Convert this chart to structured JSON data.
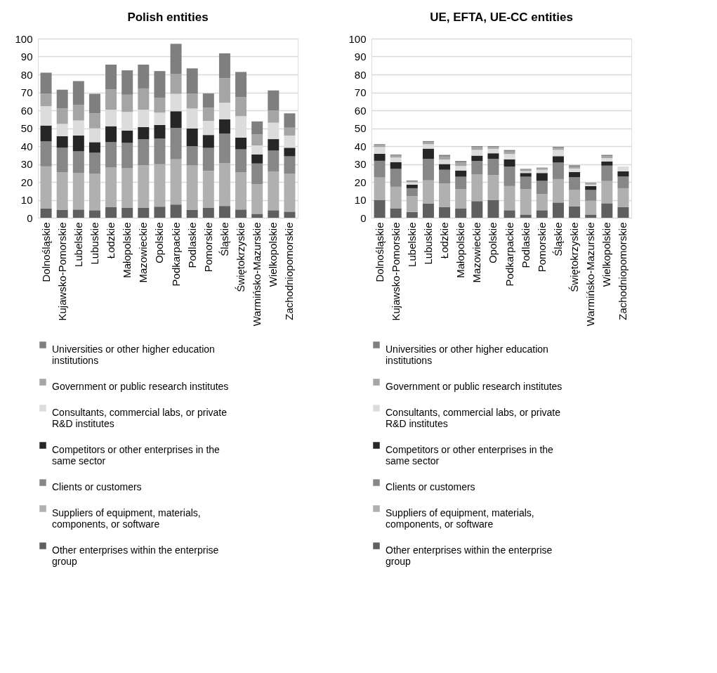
{
  "chart_data": [
    {
      "type": "bar",
      "title": "Polish entities",
      "stacked": true,
      "grid": "y",
      "legend": "bottom",
      "categories": [
        "Dolnośląskie",
        "Kujawsko-Pomorskie",
        "Lubelskie",
        "Lubuskie",
        "Łodzkie",
        "Małopolskie",
        "Mazowieckie",
        "Opolskie",
        "Podkarpackie",
        "Podlaskie",
        "Pomorskie",
        "Śląskie",
        "Świętokrzyskie",
        "Warmińsko-Mazurskie",
        "Wielkopolskie",
        "Zachodniopomorskie"
      ],
      "ylim": [
        0,
        100
      ],
      "yticks": [
        0,
        10,
        20,
        30,
        40,
        50,
        60,
        70,
        80,
        90,
        100
      ],
      "series": [
        {
          "name": "Other enterprises within the enterprise group",
          "color": "#5f5f5f",
          "values": [
            5.1,
            4.5,
            4.6,
            4.2,
            5.9,
            5.5,
            5.5,
            6.2,
            7.4,
            4.5,
            5.5,
            6.6,
            4.6,
            2.2,
            4.2,
            3.4
          ]
        },
        {
          "name": "Suppliers of equipment, materials, components, or software",
          "color": "#b0b0b0",
          "values": [
            23.6,
            21.0,
            20.5,
            20.5,
            22.3,
            22.3,
            23.9,
            23.7,
            25.3,
            24.7,
            20.7,
            24.0,
            20.9,
            16.5,
            21.7,
            21.3
          ]
        },
        {
          "name": "Clients or customers",
          "color": "#878787",
          "values": [
            14.0,
            13.6,
            12.0,
            11.6,
            14.0,
            14.0,
            14.4,
            14.3,
            17.5,
            10.8,
            12.8,
            16.4,
            12.7,
            11.6,
            11.6,
            9.6
          ]
        },
        {
          "name": "Competitors or other enterprises in the same sector",
          "color": "#262626",
          "values": [
            8.8,
            6.4,
            8.8,
            5.9,
            8.9,
            6.9,
            6.8,
            7.6,
            9.3,
            9.8,
            7.2,
            8.0,
            6.5,
            5.1,
            6.4,
            4.8
          ]
        },
        {
          "name": "Consultants, commercial labs, or private R&D institutes",
          "color": "#dcdcdc",
          "values": [
            10.8,
            6.9,
            8.4,
            7.7,
            9.2,
            10.4,
            9.7,
            6.9,
            9.7,
            11.2,
            7.9,
            9.2,
            12.0,
            5.0,
            9.2,
            6.8
          ]
        },
        {
          "name": "Government or public research institutes",
          "color": "#a5a5a5",
          "values": [
            6.9,
            8.6,
            8.8,
            8.4,
            11.4,
            9.6,
            11.9,
            8.3,
            11.2,
            8.2,
            7.3,
            13.7,
            10.7,
            6.2,
            6.8,
            4.4
          ]
        },
        {
          "name": "Universities or other higher education institutions",
          "color": "#7f7f7f",
          "values": [
            11.8,
            10.5,
            13.2,
            10.9,
            13.8,
            13.6,
            13.3,
            14.9,
            16.7,
            14.2,
            8.0,
            13.9,
            14.0,
            7.2,
            11.2,
            8.0
          ]
        }
      ]
    },
    {
      "type": "bar",
      "title": "UE, EFTA, UE-CC entities",
      "stacked": true,
      "grid": "y",
      "legend": "bottom",
      "categories": [
        "Dolnośląskie",
        "Kujawsko-Pomorskie",
        "Lubelskie",
        "Lubuskie",
        "Łodzkie",
        "Małopolskie",
        "Mazowieckie",
        "Opolskie",
        "Podkarpackie",
        "Podlaskie",
        "Pomorskie",
        "Śląskie",
        "Świętokrzyskie",
        "Warmińsko-Mazurskie",
        "Wielkopolskie",
        "Zachodniopomorskie"
      ],
      "ylim": [
        0,
        100
      ],
      "yticks": [
        0,
        10,
        20,
        30,
        40,
        50,
        60,
        70,
        80,
        90,
        100
      ],
      "series": [
        {
          "name": "Other enterprises within the enterprise group",
          "color": "#5f5f5f",
          "values": [
            10.0,
            5.3,
            3.2,
            8.0,
            5.9,
            5.3,
            9.3,
            9.8,
            4.2,
            1.8,
            4.2,
            8.5,
            6.3,
            1.8,
            8.1,
            5.9
          ]
        },
        {
          "name": "Suppliers of equipment, materials, components, or software",
          "color": "#b0b0b0",
          "values": [
            12.5,
            12.0,
            8.9,
            12.9,
            13.2,
            10.6,
            15.0,
            14.0,
            13.5,
            14.2,
            9.0,
            13.1,
            9.2,
            7.7,
            12.4,
            10.6
          ]
        },
        {
          "name": "Clients or customers",
          "color": "#878787",
          "values": [
            9.3,
            10.0,
            4.4,
            12.0,
            7.7,
            7.0,
            7.4,
            9.1,
            10.9,
            6.9,
            7.4,
            9.2,
            7.1,
            6.0,
            8.6,
            6.5
          ]
        },
        {
          "name": "Competitors or other enterprises in the same sector",
          "color": "#262626",
          "values": [
            3.9,
            3.8,
            2.0,
            5.7,
            3.2,
            3.5,
            3.0,
            3.1,
            4.0,
            2.1,
            4.4,
            3.6,
            2.9,
            2.2,
            2.3,
            2.9
          ]
        },
        {
          "name": "Consultants, commercial labs, or private R&D institutes",
          "color": "#dcdcdc",
          "values": [
            3.8,
            2.5,
            1.3,
            2.5,
            2.5,
            2.5,
            3.2,
            2.5,
            3.0,
            1.0,
            1.8,
            3.5,
            2.0,
            0.8,
            1.9,
            2.7
          ]
        },
        {
          "name": "Government or public research institutes",
          "color": "#a5a5a5",
          "values": [
            1.1,
            1.1,
            0.6,
            1.2,
            1.7,
            1.9,
            1.7,
            1.0,
            1.4,
            0.8,
            0.8,
            1.2,
            1.1,
            0.7,
            1.1,
            null
          ]
        },
        {
          "name": "Universities or other higher education institutions",
          "color": "#7f7f7f",
          "values": [
            0.5,
            0.6,
            0.4,
            0.5,
            0.9,
            0.9,
            0.4,
            0.5,
            0.8,
            0.5,
            0.4,
            0.5,
            0.7,
            0.3,
            0.7,
            null
          ]
        }
      ]
    }
  ]
}
